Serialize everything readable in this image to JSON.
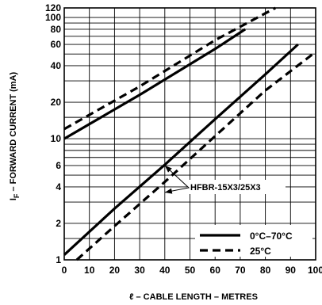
{
  "chart_data": {
    "type": "line",
    "xlabel": "ℓ – CABLE LENGTH – METRES",
    "ylabel_main": "I",
    "ylabel_sub": "F",
    "ylabel_rest": " – FORWARD CURRENT (mA)",
    "xlim": [
      0,
      100
    ],
    "ylim": [
      1,
      120
    ],
    "y_scale": "log",
    "grid": true,
    "x_ticks": [
      0,
      10,
      20,
      30,
      40,
      50,
      60,
      70,
      80,
      90,
      100
    ],
    "x_tick_labels": [
      "0",
      "10",
      "20",
      "30",
      "40",
      "50",
      "60",
      "70",
      "80",
      "90",
      "100"
    ],
    "y_ticks": [
      1,
      2,
      4,
      6,
      10,
      20,
      40,
      60,
      80,
      100,
      120
    ],
    "y_tick_labels": [
      "1",
      "2",
      "4",
      "6",
      "10",
      "20",
      "40",
      "60",
      "80",
      "100",
      "120"
    ],
    "y_grid": [
      1,
      1.5,
      2,
      3,
      4,
      5,
      6,
      7,
      8,
      9,
      10,
      15,
      20,
      30,
      40,
      50,
      60,
      70,
      80,
      90,
      100,
      120
    ],
    "legend": {
      "placement": "bottom-right",
      "entries": [
        {
          "label": "0°C–70°C",
          "style": "solid"
        },
        {
          "label": "25°C",
          "style": "dashed"
        }
      ]
    },
    "annotation": {
      "text": "HFBR-15X3/25X3",
      "points_to": [
        [
          40,
          6
        ],
        [
          40,
          3.6
        ]
      ]
    },
    "series": [
      {
        "style": "solid",
        "x": [
          0,
          30,
          60,
          72
        ],
        "y": [
          10,
          23,
          55,
          80
        ]
      },
      {
        "style": "dashed",
        "x": [
          0,
          30,
          60,
          84
        ],
        "y": [
          12,
          27,
          65,
          120
        ]
      },
      {
        "style": "solid",
        "x": [
          0,
          20,
          40,
          60,
          80,
          93
        ],
        "y": [
          1.1,
          2.65,
          6.1,
          14.5,
          34,
          60
        ]
      },
      {
        "style": "dashed",
        "x": [
          5,
          20,
          40,
          60,
          80,
          100
        ],
        "y": [
          1.0,
          1.9,
          4.4,
          10.5,
          25,
          52
        ]
      }
    ]
  }
}
